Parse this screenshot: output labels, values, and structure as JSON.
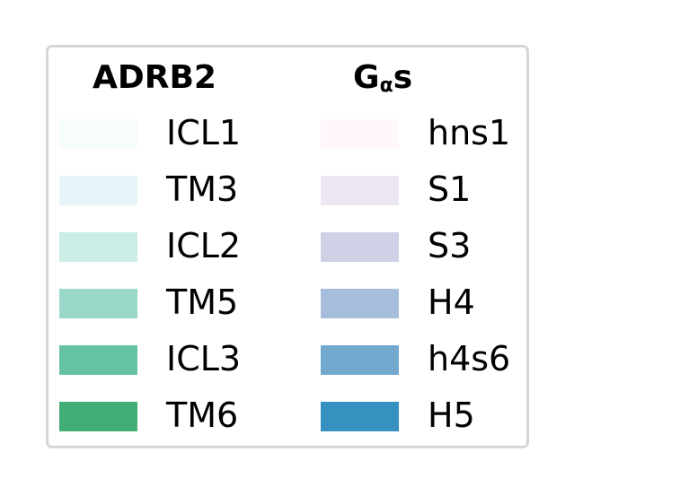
{
  "chart_data": {
    "type": "legend",
    "columns": [
      {
        "title": "ADRB2",
        "title_sub": "",
        "title_tail": "",
        "entries": [
          {
            "label": "ICL1",
            "color": "#f7fcfd"
          },
          {
            "label": "TM3",
            "color": "#e5f5f9"
          },
          {
            "label": "ICL2",
            "color": "#ccece6"
          },
          {
            "label": "TM5",
            "color": "#99d8c9"
          },
          {
            "label": "ICL3",
            "color": "#66c2a4"
          },
          {
            "label": "TM6",
            "color": "#41ae76"
          }
        ]
      },
      {
        "title": "G",
        "title_sub": "α",
        "title_tail": "s",
        "entries": [
          {
            "label": "hns1",
            "color": "#fff7fb"
          },
          {
            "label": "S1",
            "color": "#ece7f2"
          },
          {
            "label": "S3",
            "color": "#d0d1e6"
          },
          {
            "label": "H4",
            "color": "#a6bddb"
          },
          {
            "label": "h4s6",
            "color": "#74a9cf"
          },
          {
            "label": "H5",
            "color": "#3690c0"
          }
        ]
      }
    ]
  }
}
